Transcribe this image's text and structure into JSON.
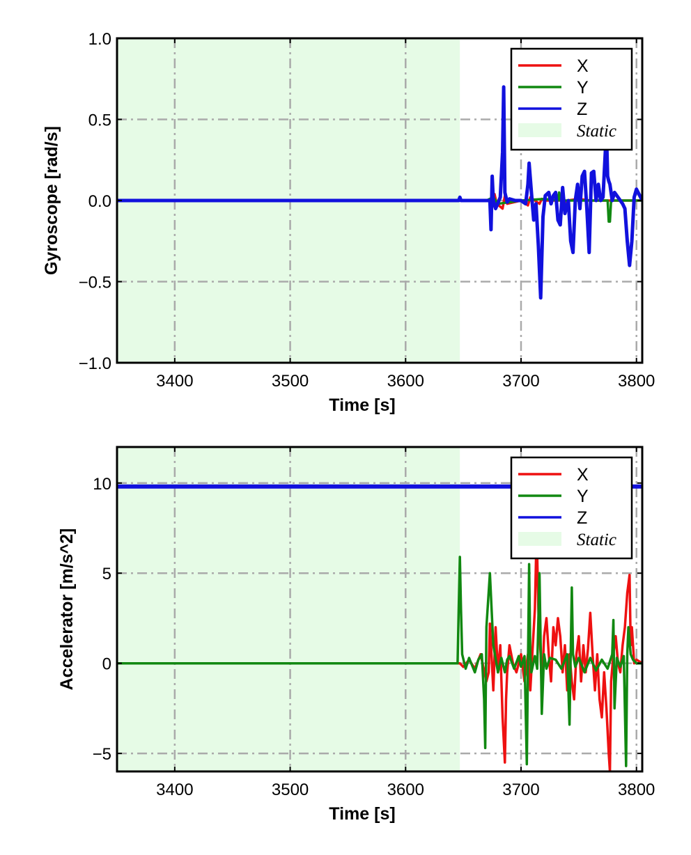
{
  "chart_data": [
    {
      "type": "line",
      "xlabel": "Time [s]",
      "ylabel": "Gyroscope [rad/s]",
      "xlim": [
        3350,
        3805
      ],
      "ylim": [
        -1.0,
        1.0
      ],
      "xticks": [
        3400,
        3500,
        3600,
        3700,
        3800
      ],
      "xtick_labels": [
        "3400",
        "3500",
        "3600",
        "3700",
        "3800"
      ],
      "yticks": [
        -1.0,
        -0.5,
        0.0,
        0.5,
        1.0
      ],
      "ytick_labels": [
        "−1.0",
        "−0.5",
        "0.0",
        "0.5",
        "1.0"
      ],
      "grid": true,
      "legend_position": "top-right",
      "static_region": {
        "label": "Static",
        "x_start": 3350,
        "x_end": 3647,
        "color": "#e6fbe6"
      },
      "series": [
        {
          "name": "X",
          "color": "#ee1111",
          "x": [
            3350,
            3672,
            3675,
            3677,
            3679,
            3684,
            3686,
            3688,
            3700,
            3706,
            3708,
            3712,
            3716,
            3718,
            3721,
            3735,
            3736,
            3740,
            3750,
            3760,
            3805
          ],
          "y": [
            0,
            0,
            -0.04,
            0.04,
            -0.02,
            -0.05,
            0.03,
            -0.02,
            0.0,
            -0.03,
            0.02,
            0.0,
            -0.02,
            0.01,
            0.0,
            0.0,
            -0.02,
            0.0,
            0.01,
            0.0,
            0.0
          ]
        },
        {
          "name": "Y",
          "color": "#118811",
          "x": [
            3350,
            3670,
            3676,
            3680,
            3700,
            3720,
            3732,
            3733,
            3734,
            3750,
            3775,
            3776,
            3777,
            3778,
            3780,
            3805
          ],
          "y": [
            0,
            0,
            0.02,
            -0.02,
            0.0,
            0.01,
            0.0,
            0.05,
            0.0,
            0.0,
            0.0,
            -0.13,
            -0.13,
            0.0,
            0.0,
            0.0
          ]
        },
        {
          "name": "Z",
          "color": "#1111dd",
          "x": [
            3350,
            3646,
            3647,
            3648,
            3673,
            3674,
            3675,
            3676,
            3678,
            3682,
            3684,
            3685,
            3686,
            3688,
            3690,
            3695,
            3700,
            3704,
            3706,
            3707,
            3709,
            3711,
            3713,
            3715,
            3717,
            3719,
            3721,
            3724,
            3726,
            3728,
            3730,
            3732,
            3734,
            3736,
            3738,
            3741,
            3743,
            3745,
            3747,
            3749,
            3751,
            3753,
            3755,
            3757,
            3759,
            3761,
            3763,
            3765,
            3767,
            3769,
            3771,
            3773,
            3774,
            3775,
            3776,
            3777,
            3779,
            3781,
            3784,
            3786,
            3788,
            3790,
            3792,
            3794,
            3796,
            3798,
            3800,
            3805
          ],
          "y": [
            0,
            0,
            0.02,
            0,
            0,
            -0.18,
            0.15,
            0.0,
            -0.05,
            0.02,
            0.3,
            0.7,
            0.05,
            -0.01,
            0.01,
            0.0,
            0.0,
            -0.02,
            0.1,
            0.23,
            0.05,
            -0.12,
            -0.02,
            -0.28,
            -0.6,
            -0.1,
            0.03,
            0.05,
            -0.02,
            0.03,
            0.05,
            -0.12,
            -0.15,
            0.08,
            -0.08,
            0.0,
            -0.25,
            -0.32,
            0.0,
            0.1,
            -0.05,
            0.15,
            0.18,
            -0.05,
            -0.32,
            0.17,
            0.18,
            0.0,
            0.1,
            0.0,
            0.02,
            0.3,
            0.43,
            0.15,
            0.12,
            0.1,
            0.0,
            0.05,
            0.02,
            0.0,
            -0.02,
            -0.05,
            -0.25,
            -0.4,
            -0.25,
            0.02,
            0.07,
            0.0
          ]
        }
      ]
    },
    {
      "type": "line",
      "xlabel": "Time [s]",
      "ylabel": "Accelerator [m/s^2]",
      "xlim": [
        3350,
        3805
      ],
      "ylim": [
        -6.0,
        12.0
      ],
      "xticks": [
        3400,
        3500,
        3600,
        3700,
        3800
      ],
      "xtick_labels": [
        "3400",
        "3500",
        "3600",
        "3700",
        "3800"
      ],
      "yticks": [
        -5,
        0,
        5,
        10
      ],
      "ytick_labels": [
        "−5",
        "0",
        "5",
        "10"
      ],
      "grid": true,
      "legend_position": "top-right",
      "static_region": {
        "label": "Static",
        "x_start": 3350,
        "x_end": 3647,
        "color": "#e6fbe6"
      },
      "series": [
        {
          "name": "X",
          "color": "#ee1111",
          "x": [
            3350,
            3647,
            3650,
            3655,
            3660,
            3665,
            3670,
            3672,
            3673,
            3674,
            3676,
            3678,
            3680,
            3682,
            3684,
            3686,
            3687,
            3688,
            3690,
            3693,
            3696,
            3700,
            3703,
            3706,
            3708,
            3710,
            3712,
            3713,
            3714,
            3715,
            3716,
            3717,
            3718,
            3720,
            3722,
            3724,
            3726,
            3728,
            3730,
            3732,
            3734,
            3736,
            3738,
            3740,
            3742,
            3744,
            3746,
            3748,
            3750,
            3752,
            3754,
            3756,
            3758,
            3760,
            3762,
            3764,
            3766,
            3768,
            3770,
            3772,
            3774,
            3776,
            3777,
            3778,
            3780,
            3782,
            3784,
            3786,
            3788,
            3790,
            3792,
            3794,
            3795,
            3796,
            3798,
            3800,
            3805
          ],
          "y": [
            0,
            0,
            -0.2,
            0.2,
            -0.3,
            0.5,
            -1.0,
            -0.5,
            2.2,
            1.0,
            -1.5,
            2.0,
            -0.5,
            1.0,
            -3.0,
            -5.5,
            -2.0,
            -0.5,
            1.0,
            0.0,
            -0.5,
            0.5,
            -1.0,
            0.5,
            -1.5,
            0.8,
            3.0,
            5.8,
            6.0,
            3.0,
            1.5,
            0.5,
            -1.5,
            1.5,
            2.5,
            0.5,
            -1.0,
            2.0,
            1.0,
            2.5,
            1.5,
            -0.5,
            1.0,
            -1.5,
            0.5,
            -1.0,
            -2.0,
            0.5,
            1.5,
            -1.0,
            1.0,
            -0.5,
            0.8,
            2.8,
            0.5,
            -1.5,
            0.5,
            -2.0,
            -3.0,
            -0.5,
            -2.5,
            -5.0,
            -6.0,
            -1.0,
            0.5,
            1.5,
            0.0,
            -0.5,
            1.0,
            2.0,
            3.9,
            4.9,
            1.0,
            2.0,
            0.0,
            0.2,
            0.0
          ]
        },
        {
          "name": "Y",
          "color": "#118811",
          "x": [
            3350,
            3645,
            3646,
            3647,
            3648,
            3649,
            3652,
            3655,
            3660,
            3663,
            3666,
            3668,
            3669,
            3670,
            3673,
            3676,
            3680,
            3683,
            3686,
            3688,
            3690,
            3694,
            3698,
            3700,
            3703,
            3705,
            3707,
            3708,
            3709,
            3712,
            3714,
            3716,
            3718,
            3720,
            3722,
            3725,
            3730,
            3735,
            3740,
            3742,
            3744,
            3745,
            3747,
            3750,
            3755,
            3760,
            3765,
            3770,
            3775,
            3779,
            3780,
            3781,
            3783,
            3786,
            3789,
            3791,
            3792,
            3793,
            3795,
            3797,
            3800,
            3805
          ],
          "y": [
            0,
            0,
            3.0,
            5.9,
            3.0,
            0.5,
            -0.3,
            0.3,
            -0.5,
            0.2,
            0.5,
            -2.0,
            -4.7,
            2.0,
            5.0,
            1.0,
            -0.5,
            0.3,
            -0.5,
            0.2,
            0.4,
            -0.3,
            0.4,
            -0.2,
            0.4,
            -5.6,
            5.5,
            0.5,
            -0.5,
            0.4,
            -0.3,
            5.0,
            -2.8,
            0.5,
            -0.3,
            0.3,
            0.2,
            -0.3,
            0.5,
            -3.4,
            4.2,
            0.5,
            -0.2,
            0.3,
            -0.5,
            0.3,
            -0.4,
            0.2,
            -0.3,
            0.5,
            2.4,
            -2.5,
            0.3,
            -0.2,
            0.4,
            -5.7,
            0.5,
            2.0,
            0.5,
            0.2,
            0.0,
            0.0
          ]
        },
        {
          "name": "Z",
          "color": "#1111dd",
          "x": [
            3350,
            3805
          ],
          "y": [
            9.81,
            9.81
          ]
        }
      ]
    }
  ]
}
